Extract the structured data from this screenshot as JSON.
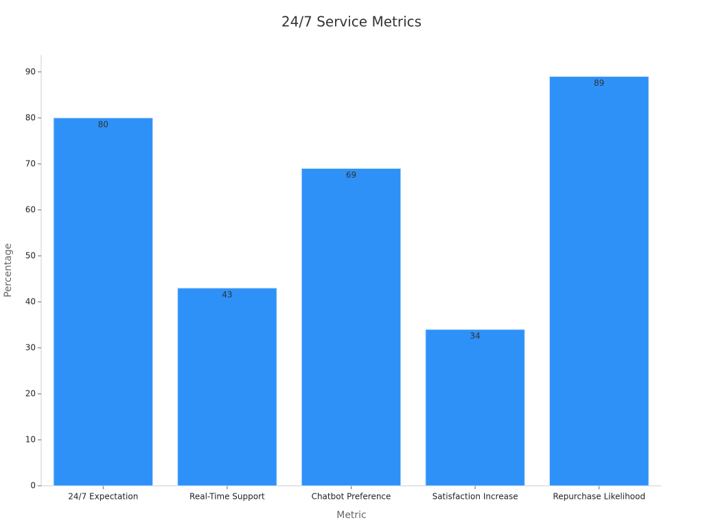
{
  "chart_data": {
    "type": "bar",
    "title": "24/7 Service Metrics",
    "x_label": "Metric",
    "y_label": "Percentage",
    "categories": [
      "24/7 Expectation",
      "Real-Time Support",
      "Chatbot Preference",
      "Satisfaction Increase",
      "Repurchase Likelihood"
    ],
    "values": [
      80,
      43,
      69,
      34,
      89
    ],
    "color": "#2e91f8",
    "ylim": [
      0,
      93.7
    ],
    "yticks": [
      0,
      10,
      20,
      30,
      40,
      50,
      60,
      70,
      80,
      90
    ],
    "grid": false
  }
}
